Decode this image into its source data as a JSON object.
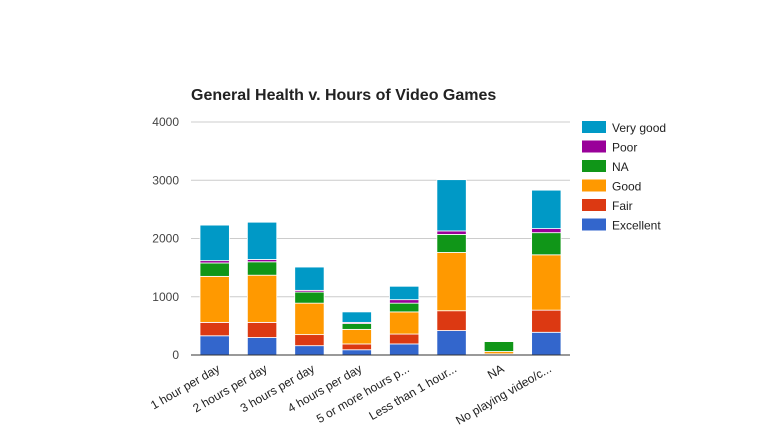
{
  "chart_data": {
    "type": "bar",
    "stacked": true,
    "title": "General Health v. Hours of Video Games",
    "categories": [
      "1 hour per day",
      "2 hours per day",
      "3 hours per day",
      "4 hours per day",
      "5 or more hours p...",
      "Less than 1 hour...",
      "NA",
      "No playing video/c..."
    ],
    "series": [
      {
        "name": "Excellent",
        "color": "#3366cc",
        "values": [
          330,
          300,
          160,
          90,
          190,
          420,
          10,
          390
        ]
      },
      {
        "name": "Fair",
        "color": "#dc3912",
        "values": [
          230,
          260,
          190,
          100,
          170,
          340,
          10,
          380
        ]
      },
      {
        "name": "Good",
        "color": "#ff9900",
        "values": [
          790,
          810,
          540,
          250,
          380,
          1000,
          40,
          950
        ]
      },
      {
        "name": "NA",
        "color": "#109618",
        "values": [
          230,
          230,
          190,
          100,
          150,
          310,
          170,
          380
        ]
      },
      {
        "name": "Poor",
        "color": "#990099",
        "values": [
          40,
          40,
          30,
          20,
          60,
          60,
          0,
          70
        ]
      },
      {
        "name": "Very good",
        "color": "#0099c6",
        "values": [
          610,
          640,
          400,
          180,
          230,
          880,
          0,
          660
        ]
      }
    ],
    "ylim": [
      0,
      4000
    ],
    "yticks": [
      0,
      1000,
      2000,
      3000,
      4000
    ],
    "grid": true,
    "legend": "right"
  }
}
